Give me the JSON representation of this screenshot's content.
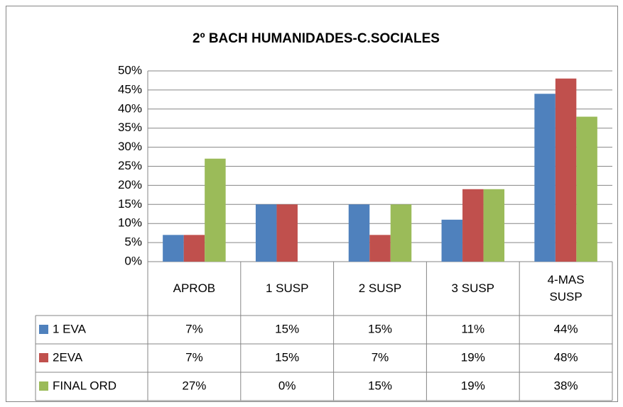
{
  "chart_data": {
    "type": "bar",
    "title": "2º BACH HUMANIDADES-C.SOCIALES",
    "categories": [
      "APROB",
      "1 SUSP",
      "2 SUSP",
      "3 SUSP",
      "4-MAS SUSP"
    ],
    "series": [
      {
        "name": "1 EVA",
        "color": "#4f81bd",
        "values": [
          7,
          15,
          15,
          11,
          44
        ],
        "value_labels": [
          "7%",
          "15%",
          "15%",
          "11%",
          "44%"
        ]
      },
      {
        "name": "2EVA",
        "color": "#c0504d",
        "values": [
          7,
          15,
          7,
          19,
          48
        ],
        "value_labels": [
          "7%",
          "15%",
          "7%",
          "19%",
          "48%"
        ]
      },
      {
        "name": "FINAL ORD",
        "color": "#9bbb59",
        "values": [
          27,
          0,
          15,
          19,
          38
        ],
        "value_labels": [
          "27%",
          "0%",
          "15%",
          "19%",
          "38%"
        ]
      }
    ],
    "ylim": [
      0,
      50
    ],
    "yticks": [
      {
        "value": 0,
        "label": "0%"
      },
      {
        "value": 5,
        "label": "5%"
      },
      {
        "value": 10,
        "label": "10%"
      },
      {
        "value": 15,
        "label": "15%"
      },
      {
        "value": 20,
        "label": "20%"
      },
      {
        "value": 25,
        "label": "25%"
      },
      {
        "value": 30,
        "label": "30%"
      },
      {
        "value": 35,
        "label": "35%"
      },
      {
        "value": 40,
        "label": "40%"
      },
      {
        "value": 45,
        "label": "45%"
      },
      {
        "value": 50,
        "label": "50%"
      }
    ],
    "grid": true
  }
}
